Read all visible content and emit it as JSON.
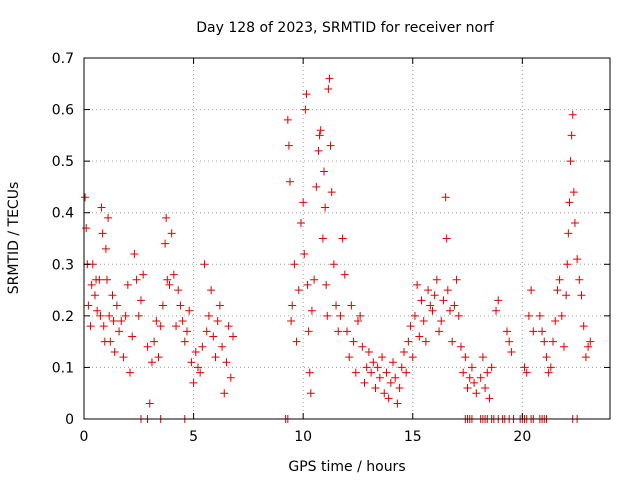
{
  "chart_data": {
    "type": "scatter",
    "title": "Day 128 of 2023, SRMTID for receiver norf",
    "xlabel": "GPS time / hours",
    "ylabel": "SRMTID / TECUs",
    "xlim": [
      0,
      24
    ],
    "ylim": [
      0,
      0.7
    ],
    "xticks": [
      0,
      5,
      10,
      15,
      20
    ],
    "xtick_labels": [
      "0",
      "5",
      "10",
      "15",
      "20"
    ],
    "yticks": [
      0,
      0.1,
      0.2,
      0.3,
      0.4,
      0.5,
      0.6,
      0.7
    ],
    "ytick_labels": [
      "0",
      "0.1",
      "0.2",
      "0.3",
      "0.4",
      "0.5",
      "0.6",
      "0.7"
    ],
    "grid": true,
    "marker": "+",
    "color": "#e00000",
    "series": [
      {
        "name": "SRMTID",
        "points": [
          [
            0.05,
            0.43
          ],
          [
            0.1,
            0.37
          ],
          [
            0.15,
            0.3
          ],
          [
            0.2,
            0.22
          ],
          [
            0.3,
            0.18
          ],
          [
            0.35,
            0.26
          ],
          [
            0.4,
            0.3
          ],
          [
            0.5,
            0.24
          ],
          [
            0.55,
            0.27
          ],
          [
            0.6,
            0.21
          ],
          [
            0.7,
            0.27
          ],
          [
            0.75,
            0.2
          ],
          [
            0.8,
            0.41
          ],
          [
            0.85,
            0.36
          ],
          [
            0.9,
            0.18
          ],
          [
            0.95,
            0.15
          ],
          [
            1.0,
            0.33
          ],
          [
            1.05,
            0.27
          ],
          [
            1.1,
            0.39
          ],
          [
            1.15,
            0.2
          ],
          [
            1.2,
            0.15
          ],
          [
            1.3,
            0.24
          ],
          [
            1.35,
            0.19
          ],
          [
            1.4,
            0.13
          ],
          [
            1.5,
            0.22
          ],
          [
            1.6,
            0.17
          ],
          [
            1.7,
            0.19
          ],
          [
            1.8,
            0.12
          ],
          [
            1.9,
            0.2
          ],
          [
            2.0,
            0.26
          ],
          [
            2.1,
            0.09
          ],
          [
            2.2,
            0.16
          ],
          [
            2.3,
            0.32
          ],
          [
            2.4,
            0.27
          ],
          [
            2.5,
            0.2
          ],
          [
            2.6,
            0.23
          ],
          [
            2.7,
            0.28
          ],
          [
            2.9,
            0.14
          ],
          [
            3.0,
            0.03
          ],
          [
            3.1,
            0.11
          ],
          [
            3.2,
            0.15
          ],
          [
            3.3,
            0.19
          ],
          [
            3.4,
            0.12
          ],
          [
            3.5,
            0.18
          ],
          [
            3.6,
            0.22
          ],
          [
            3.7,
            0.34
          ],
          [
            3.75,
            0.39
          ],
          [
            3.8,
            0.27
          ],
          [
            3.9,
            0.26
          ],
          [
            4.0,
            0.36
          ],
          [
            4.1,
            0.28
          ],
          [
            4.2,
            0.18
          ],
          [
            4.3,
            0.25
          ],
          [
            4.4,
            0.22
          ],
          [
            4.5,
            0.19
          ],
          [
            4.6,
            0.15
          ],
          [
            4.7,
            0.17
          ],
          [
            4.8,
            0.21
          ],
          [
            4.9,
            0.11
          ],
          [
            5.0,
            0.07
          ],
          [
            5.1,
            0.13
          ],
          [
            5.2,
            0.1
          ],
          [
            5.3,
            0.09
          ],
          [
            5.4,
            0.14
          ],
          [
            5.5,
            0.3
          ],
          [
            5.6,
            0.17
          ],
          [
            5.7,
            0.2
          ],
          [
            5.8,
            0.25
          ],
          [
            5.9,
            0.16
          ],
          [
            6.0,
            0.12
          ],
          [
            6.1,
            0.19
          ],
          [
            6.2,
            0.22
          ],
          [
            6.3,
            0.14
          ],
          [
            6.4,
            0.05
          ],
          [
            6.5,
            0.11
          ],
          [
            6.6,
            0.18
          ],
          [
            6.7,
            0.08
          ],
          [
            6.8,
            0.16
          ],
          [
            9.3,
            0.58
          ],
          [
            9.35,
            0.53
          ],
          [
            9.4,
            0.46
          ],
          [
            9.45,
            0.19
          ],
          [
            9.5,
            0.22
          ],
          [
            9.6,
            0.3
          ],
          [
            9.7,
            0.15
          ],
          [
            9.8,
            0.25
          ],
          [
            9.9,
            0.38
          ],
          [
            10.0,
            0.42
          ],
          [
            10.05,
            0.32
          ],
          [
            10.1,
            0.6
          ],
          [
            10.15,
            0.63
          ],
          [
            10.2,
            0.26
          ],
          [
            10.25,
            0.17
          ],
          [
            10.3,
            0.09
          ],
          [
            10.35,
            0.05
          ],
          [
            10.4,
            0.21
          ],
          [
            10.5,
            0.27
          ],
          [
            10.6,
            0.45
          ],
          [
            10.7,
            0.52
          ],
          [
            10.75,
            0.55
          ],
          [
            10.8,
            0.56
          ],
          [
            10.9,
            0.35
          ],
          [
            10.95,
            0.48
          ],
          [
            11.0,
            0.41
          ],
          [
            11.05,
            0.26
          ],
          [
            11.1,
            0.2
          ],
          [
            11.15,
            0.64
          ],
          [
            11.2,
            0.66
          ],
          [
            11.25,
            0.53
          ],
          [
            11.3,
            0.44
          ],
          [
            11.4,
            0.3
          ],
          [
            11.5,
            0.22
          ],
          [
            11.6,
            0.17
          ],
          [
            11.7,
            0.2
          ],
          [
            11.8,
            0.35
          ],
          [
            11.9,
            0.28
          ],
          [
            12.0,
            0.17
          ],
          [
            12.1,
            0.12
          ],
          [
            12.2,
            0.22
          ],
          [
            12.3,
            0.15
          ],
          [
            12.4,
            0.09
          ],
          [
            12.5,
            0.19
          ],
          [
            12.6,
            0.2
          ],
          [
            12.7,
            0.14
          ],
          [
            12.8,
            0.07
          ],
          [
            12.9,
            0.1
          ],
          [
            13.0,
            0.13
          ],
          [
            13.1,
            0.09
          ],
          [
            13.2,
            0.11
          ],
          [
            13.3,
            0.06
          ],
          [
            13.4,
            0.1
          ],
          [
            13.5,
            0.08
          ],
          [
            13.6,
            0.12
          ],
          [
            13.7,
            0.05
          ],
          [
            13.8,
            0.09
          ],
          [
            13.9,
            0.04
          ],
          [
            14.0,
            0.07
          ],
          [
            14.1,
            0.11
          ],
          [
            14.2,
            0.08
          ],
          [
            14.3,
            0.03
          ],
          [
            14.4,
            0.06
          ],
          [
            14.5,
            0.1
          ],
          [
            14.6,
            0.13
          ],
          [
            14.7,
            0.09
          ],
          [
            14.8,
            0.15
          ],
          [
            14.9,
            0.18
          ],
          [
            15.0,
            0.12
          ],
          [
            15.1,
            0.2
          ],
          [
            15.2,
            0.26
          ],
          [
            15.3,
            0.16
          ],
          [
            15.4,
            0.23
          ],
          [
            15.5,
            0.19
          ],
          [
            15.6,
            0.15
          ],
          [
            15.7,
            0.25
          ],
          [
            15.8,
            0.22
          ],
          [
            15.9,
            0.21
          ],
          [
            16.0,
            0.24
          ],
          [
            16.1,
            0.27
          ],
          [
            16.2,
            0.17
          ],
          [
            16.3,
            0.19
          ],
          [
            16.4,
            0.23
          ],
          [
            16.5,
            0.43
          ],
          [
            16.55,
            0.35
          ],
          [
            16.6,
            0.25
          ],
          [
            16.7,
            0.21
          ],
          [
            16.8,
            0.15
          ],
          [
            16.9,
            0.22
          ],
          [
            17.0,
            0.27
          ],
          [
            17.1,
            0.2
          ],
          [
            17.2,
            0.14
          ],
          [
            17.3,
            0.09
          ],
          [
            17.4,
            0.12
          ],
          [
            17.5,
            0.06
          ],
          [
            17.6,
            0.08
          ],
          [
            17.7,
            0.1
          ],
          [
            17.8,
            0.07
          ],
          [
            17.9,
            0.05
          ],
          [
            18.1,
            0.08
          ],
          [
            18.2,
            0.12
          ],
          [
            18.3,
            0.06
          ],
          [
            18.4,
            0.09
          ],
          [
            18.5,
            0.04
          ],
          [
            18.6,
            0.1
          ],
          [
            18.8,
            0.21
          ],
          [
            18.9,
            0.23
          ],
          [
            19.3,
            0.17
          ],
          [
            19.4,
            0.15
          ],
          [
            19.5,
            0.13
          ],
          [
            20.1,
            0.1
          ],
          [
            20.2,
            0.09
          ],
          [
            20.3,
            0.2
          ],
          [
            20.4,
            0.25
          ],
          [
            20.5,
            0.17
          ],
          [
            20.8,
            0.2
          ],
          [
            20.9,
            0.17
          ],
          [
            21.0,
            0.15
          ],
          [
            21.1,
            0.12
          ],
          [
            21.2,
            0.09
          ],
          [
            21.3,
            0.1
          ],
          [
            21.4,
            0.15
          ],
          [
            21.5,
            0.19
          ],
          [
            21.6,
            0.25
          ],
          [
            21.7,
            0.27
          ],
          [
            21.8,
            0.2
          ],
          [
            21.9,
            0.14
          ],
          [
            22.0,
            0.24
          ],
          [
            22.05,
            0.3
          ],
          [
            22.1,
            0.36
          ],
          [
            22.15,
            0.42
          ],
          [
            22.2,
            0.5
          ],
          [
            22.25,
            0.55
          ],
          [
            22.3,
            0.59
          ],
          [
            22.35,
            0.44
          ],
          [
            22.4,
            0.38
          ],
          [
            22.5,
            0.31
          ],
          [
            22.6,
            0.27
          ],
          [
            22.7,
            0.24
          ],
          [
            22.8,
            0.18
          ],
          [
            22.9,
            0.12
          ],
          [
            23.0,
            0.14
          ],
          [
            23.1,
            0.15
          ],
          [
            2.6,
            0
          ],
          [
            2.9,
            0
          ],
          [
            3.5,
            0
          ],
          [
            4.6,
            0
          ],
          [
            9.2,
            0
          ],
          [
            9.3,
            0
          ],
          [
            17.4,
            0
          ],
          [
            17.5,
            0
          ],
          [
            17.6,
            0
          ],
          [
            17.7,
            0
          ],
          [
            18.1,
            0
          ],
          [
            18.2,
            0
          ],
          [
            18.3,
            0
          ],
          [
            18.4,
            0
          ],
          [
            18.6,
            0
          ],
          [
            18.7,
            0
          ],
          [
            18.9,
            0
          ],
          [
            19.1,
            0
          ],
          [
            19.2,
            0
          ],
          [
            19.4,
            0
          ],
          [
            19.6,
            0
          ],
          [
            19.9,
            0
          ],
          [
            20.0,
            0
          ],
          [
            20.1,
            0
          ],
          [
            20.2,
            0
          ],
          [
            20.4,
            0
          ],
          [
            20.5,
            0
          ],
          [
            20.8,
            0
          ],
          [
            20.9,
            0
          ],
          [
            21.0,
            0
          ],
          [
            21.1,
            0
          ],
          [
            22.3,
            0
          ],
          [
            22.5,
            0
          ]
        ]
      }
    ]
  }
}
